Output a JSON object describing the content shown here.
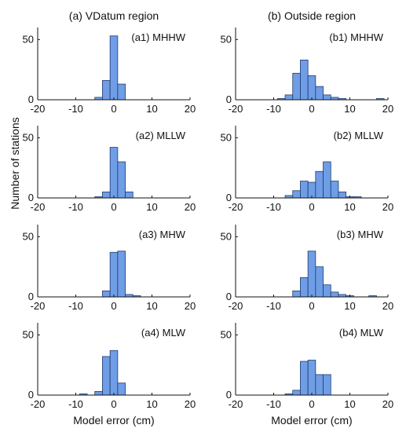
{
  "figure": {
    "column_titles": [
      "(a) VDatum region",
      "(b) Outside region"
    ],
    "ylabel": "Number of stations",
    "xlabel": "Model error (cm)",
    "bar_color": "#6f9ee6",
    "bar_edge": "#1f3a6b"
  },
  "chart_data": [
    {
      "type": "bar",
      "label": "(a1) MHHW",
      "xlim": [
        -20,
        20
      ],
      "ylim": [
        0,
        60
      ],
      "xticks": [
        -20,
        -10,
        0,
        10,
        20
      ],
      "yticks": [
        0,
        50
      ],
      "bin_width": 2,
      "bins": [
        {
          "x": -4,
          "y": 2
        },
        {
          "x": -2,
          "y": 16
        },
        {
          "x": 0,
          "y": 53
        },
        {
          "x": 2,
          "y": 13
        }
      ]
    },
    {
      "type": "bar",
      "label": "(b1) MHHW",
      "xlim": [
        -20,
        20
      ],
      "ylim": [
        0,
        60
      ],
      "xticks": [
        -20,
        -10,
        0,
        10,
        20
      ],
      "yticks": [
        0,
        50
      ],
      "bin_width": 2,
      "bins": [
        {
          "x": -8,
          "y": 1
        },
        {
          "x": -6,
          "y": 4
        },
        {
          "x": -4,
          "y": 22
        },
        {
          "x": -2,
          "y": 33
        },
        {
          "x": 0,
          "y": 20
        },
        {
          "x": 2,
          "y": 11
        },
        {
          "x": 4,
          "y": 4
        },
        {
          "x": 6,
          "y": 2
        },
        {
          "x": 8,
          "y": 1
        },
        {
          "x": 18,
          "y": 1
        }
      ]
    },
    {
      "type": "bar",
      "label": "(a2) MLLW",
      "xlim": [
        -20,
        20
      ],
      "ylim": [
        0,
        60
      ],
      "xticks": [
        -20,
        -10,
        0,
        10,
        20
      ],
      "yticks": [
        0,
        50
      ],
      "bin_width": 2,
      "bins": [
        {
          "x": -4,
          "y": 1
        },
        {
          "x": -2,
          "y": 5
        },
        {
          "x": 0,
          "y": 42
        },
        {
          "x": 2,
          "y": 30
        },
        {
          "x": 4,
          "y": 5
        }
      ]
    },
    {
      "type": "bar",
      "label": "(b2) MLLW",
      "xlim": [
        -20,
        20
      ],
      "ylim": [
        0,
        60
      ],
      "xticks": [
        -20,
        -10,
        0,
        10,
        20
      ],
      "yticks": [
        0,
        50
      ],
      "bin_width": 2,
      "bins": [
        {
          "x": -6,
          "y": 2
        },
        {
          "x": -4,
          "y": 6
        },
        {
          "x": -2,
          "y": 14
        },
        {
          "x": 0,
          "y": 13
        },
        {
          "x": 2,
          "y": 22
        },
        {
          "x": 4,
          "y": 30
        },
        {
          "x": 6,
          "y": 14
        },
        {
          "x": 8,
          "y": 5
        },
        {
          "x": 10,
          "y": 1
        },
        {
          "x": 12,
          "y": 1
        }
      ]
    },
    {
      "type": "bar",
      "label": "(a3) MHW",
      "xlim": [
        -20,
        20
      ],
      "ylim": [
        0,
        60
      ],
      "xticks": [
        -20,
        -10,
        0,
        10,
        20
      ],
      "yticks": [
        0,
        50
      ],
      "bin_width": 2,
      "bins": [
        {
          "x": -2,
          "y": 5
        },
        {
          "x": 0,
          "y": 37
        },
        {
          "x": 2,
          "y": 38
        },
        {
          "x": 4,
          "y": 2
        },
        {
          "x": 6,
          "y": 1
        }
      ]
    },
    {
      "type": "bar",
      "label": "(b3) MHW",
      "xlim": [
        -20,
        20
      ],
      "ylim": [
        0,
        60
      ],
      "xticks": [
        -20,
        -10,
        0,
        10,
        20
      ],
      "yticks": [
        0,
        50
      ],
      "bin_width": 2,
      "bins": [
        {
          "x": -4,
          "y": 5
        },
        {
          "x": -2,
          "y": 16
        },
        {
          "x": 0,
          "y": 38
        },
        {
          "x": 2,
          "y": 25
        },
        {
          "x": 4,
          "y": 10
        },
        {
          "x": 6,
          "y": 4
        },
        {
          "x": 8,
          "y": 2
        },
        {
          "x": 10,
          "y": 1
        },
        {
          "x": 16,
          "y": 1
        }
      ]
    },
    {
      "type": "bar",
      "label": "(a4) MLW",
      "xlim": [
        -20,
        20
      ],
      "ylim": [
        0,
        60
      ],
      "xticks": [
        -20,
        -10,
        0,
        10,
        20
      ],
      "yticks": [
        0,
        50
      ],
      "bin_width": 2,
      "bins": [
        {
          "x": -8,
          "y": 1
        },
        {
          "x": -4,
          "y": 3
        },
        {
          "x": -2,
          "y": 32
        },
        {
          "x": 0,
          "y": 37
        },
        {
          "x": 2,
          "y": 10
        }
      ]
    },
    {
      "type": "bar",
      "label": "(b4) MLW",
      "xlim": [
        -20,
        20
      ],
      "ylim": [
        0,
        60
      ],
      "xticks": [
        -20,
        -10,
        0,
        10,
        20
      ],
      "yticks": [
        0,
        50
      ],
      "bin_width": 2,
      "bins": [
        {
          "x": -6,
          "y": 1
        },
        {
          "x": -4,
          "y": 4
        },
        {
          "x": -2,
          "y": 28
        },
        {
          "x": 0,
          "y": 29
        },
        {
          "x": 2,
          "y": 17
        },
        {
          "x": 4,
          "y": 17
        }
      ]
    }
  ]
}
